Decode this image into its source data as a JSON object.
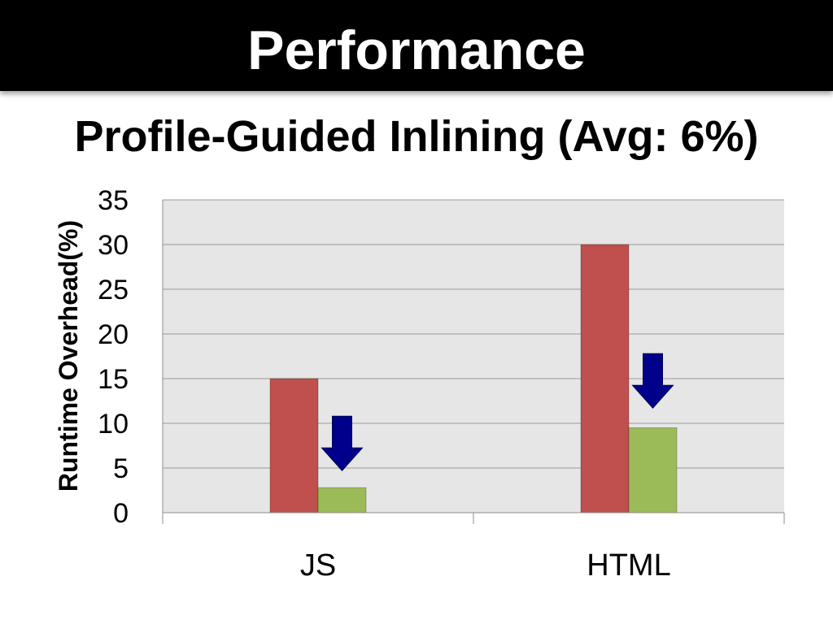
{
  "slide": {
    "title": "Performance"
  },
  "chart_data": {
    "type": "bar",
    "title": "Profile-Guided Inlining (Avg: 6%)",
    "xlabel": "",
    "ylabel": "Runtime Overhead(%)",
    "categories": [
      "JS",
      "HTML"
    ],
    "series": [
      {
        "values": [
          15,
          30
        ],
        "color": "#c0504d"
      },
      {
        "values": [
          2.8,
          9.5
        ],
        "color": "#9bbb59"
      }
    ],
    "ylim": [
      0,
      35
    ],
    "yticks": [
      0,
      5,
      10,
      15,
      20,
      25,
      30,
      35
    ],
    "grid": true,
    "legend": "none",
    "plot_background": "#e6e6e6",
    "annotations": [
      {
        "type": "down-arrow-icon",
        "category": "JS",
        "from": 10.8,
        "to": 4.7,
        "color": "#00008b"
      },
      {
        "type": "down-arrow-icon",
        "category": "HTML",
        "from": 17.8,
        "to": 11.7,
        "color": "#00008b"
      }
    ]
  }
}
